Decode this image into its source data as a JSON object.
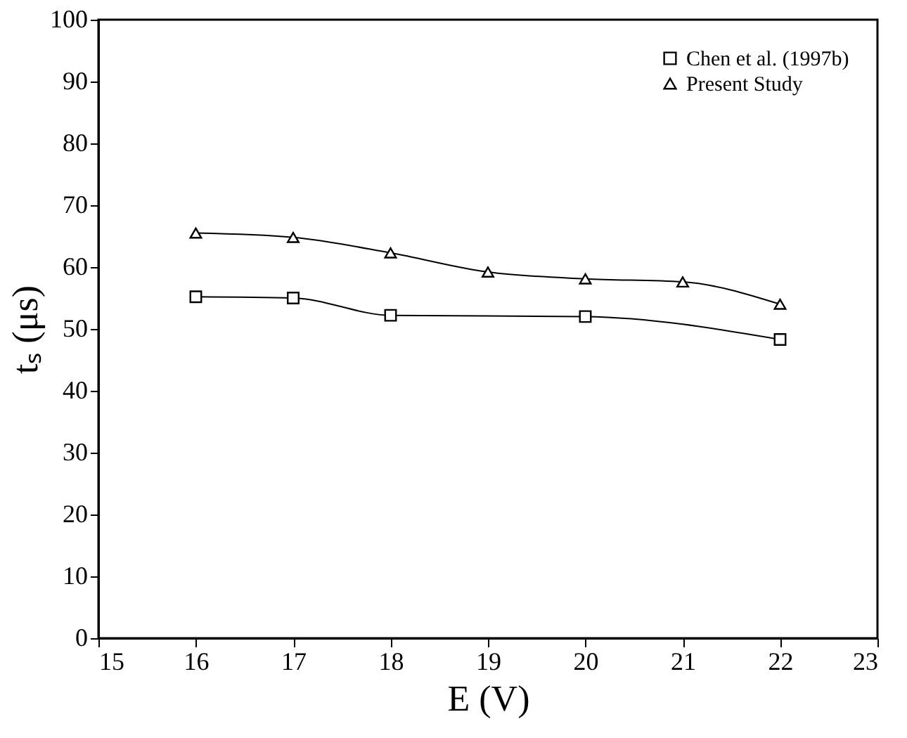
{
  "chart_data": {
    "type": "line",
    "xlabel": "E (V)",
    "ylabel": "tₛ (μs)",
    "x": [
      16,
      17,
      18,
      19,
      20,
      21,
      22
    ],
    "series": [
      {
        "name": "Chen et al. (1997b)",
        "color": "#000000",
        "marker": "square",
        "values": [
          55.2,
          55.0,
          52.2,
          null,
          52.0,
          null,
          48.3
        ]
      },
      {
        "name": "Present Study",
        "color": "#000000",
        "marker": "triangle",
        "values": [
          65.5,
          64.8,
          62.3,
          59.2,
          58.1,
          57.6,
          54.0
        ]
      }
    ],
    "xlim": [
      15,
      23
    ],
    "xticks": [
      15,
      16,
      17,
      18,
      19,
      20,
      21,
      22,
      23
    ],
    "ylim": [
      0,
      100
    ],
    "yticks": [
      0,
      10,
      20,
      30,
      40,
      50,
      60,
      70,
      80,
      90,
      100
    ],
    "grid": false,
    "legend": "top right",
    "line_style": "solid"
  }
}
